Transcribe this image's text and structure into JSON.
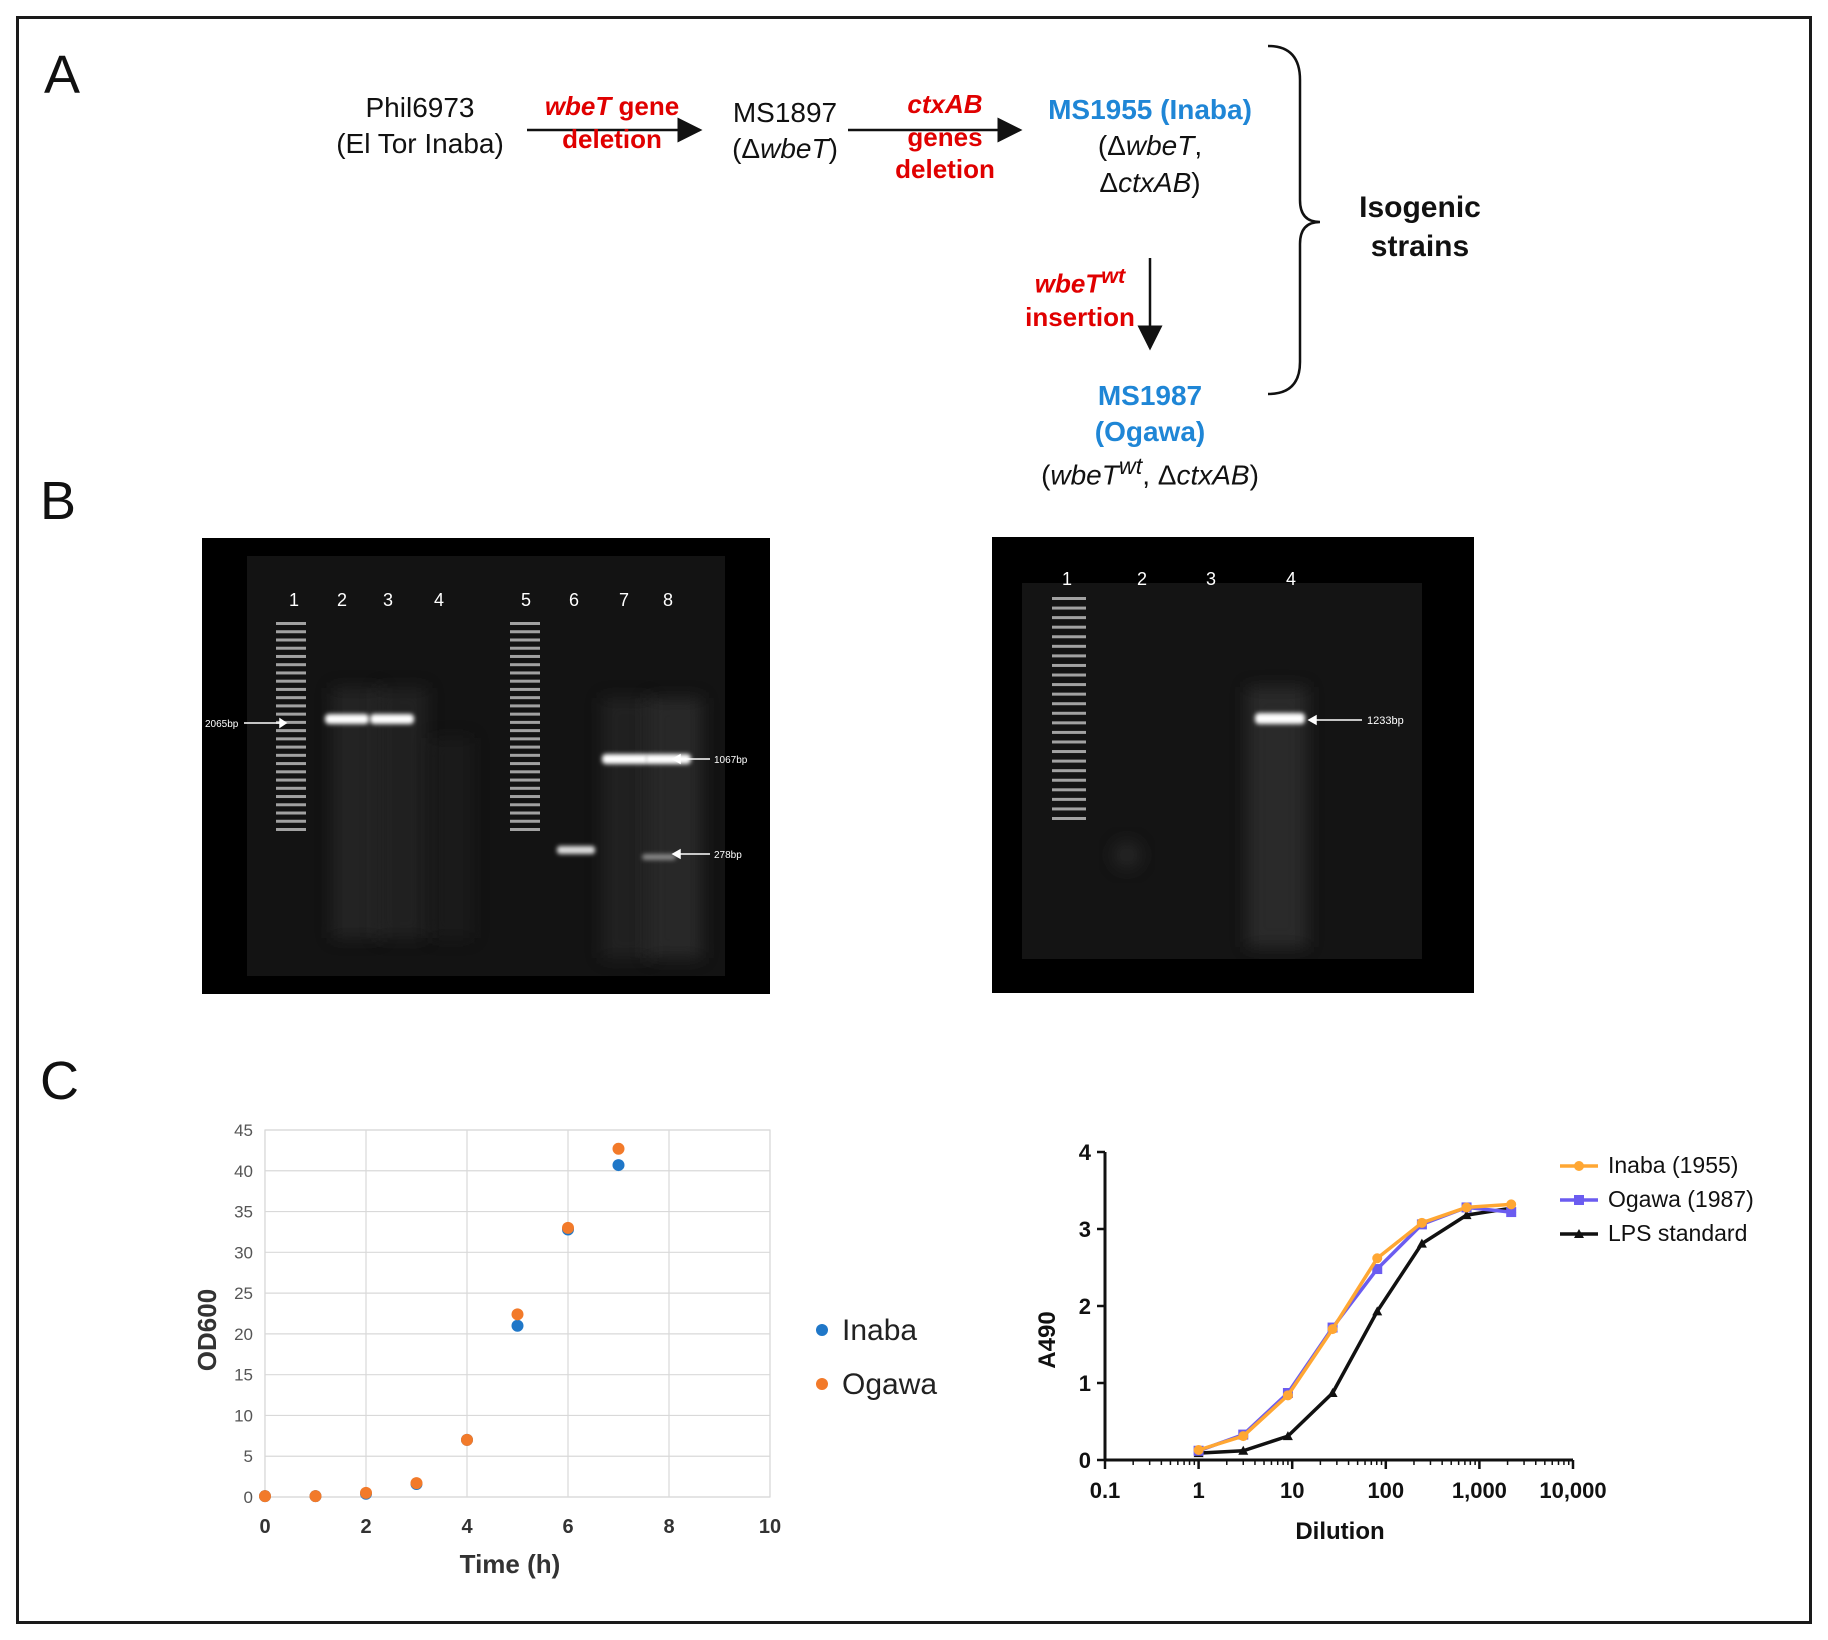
{
  "panels": {
    "a": "A",
    "b": "B",
    "c": "C"
  },
  "scheme": {
    "phil": {
      "line1": "Phil6973",
      "line2": "(El Tor Inaba)"
    },
    "step1": {
      "gene": "wbeT",
      "line1_rest": " gene",
      "line2": "deletion"
    },
    "ms1897": {
      "name": "MS1897",
      "delta": "(Δ",
      "gene": "wbeT",
      "close": ")"
    },
    "step2": {
      "gene": "ctxAB",
      "line2": "genes",
      "line3": "deletion"
    },
    "ms1955": {
      "name": "MS1955 (Inaba)",
      "l2_open": "(Δ",
      "l2_gene": "wbeT",
      "l2_comma": ",",
      "l3_open": "Δ",
      "l3_gene": "ctxAB",
      "l3_close": ")"
    },
    "step3": {
      "gene": "wbeT",
      "sup": "wt",
      "line2": "insertion"
    },
    "ms1987": {
      "line1": "MS1987",
      "line2": "(Ogawa)",
      "l3_open": "(",
      "l3_gene": "wbeT",
      "l3_sup": "wt",
      "l3_mid": ", Δ",
      "l3_gene2": "ctxAB",
      "l3_close": ")"
    },
    "isogenic": {
      "line1": "Isogenic",
      "line2": "strains"
    }
  },
  "gel_left": {
    "lanes": [
      "1",
      "2",
      "3",
      "4",
      "5",
      "6",
      "7",
      "8"
    ],
    "markers": {
      "m2065": "2065bp",
      "m1067": "1067bp",
      "m278": "278bp"
    }
  },
  "gel_right": {
    "lanes": [
      "1",
      "2",
      "3",
      "4"
    ],
    "markers": {
      "m1233": "1233bp"
    }
  },
  "colors": {
    "inaba": "#1f77c8",
    "ogawa": "#f27a2a",
    "inaba_line": "#ffa733",
    "ogawa_line": "#6b5cf0",
    "lps": "#111111"
  },
  "chart_data": [
    {
      "type": "scatter",
      "xlabel": "Time (h)",
      "ylabel": "OD600",
      "xlim": [
        0,
        10
      ],
      "ylim": [
        0,
        45
      ],
      "xticks": [
        0,
        2,
        4,
        6,
        8,
        10
      ],
      "yticks": [
        0,
        5,
        10,
        15,
        20,
        25,
        30,
        35,
        40,
        45
      ],
      "grid": true,
      "legend": "right",
      "series": [
        {
          "name": "Inaba",
          "x": [
            0,
            1,
            2,
            3,
            4,
            5,
            6,
            7
          ],
          "y": [
            0.1,
            0.1,
            0.4,
            1.6,
            7.0,
            21.0,
            32.8,
            40.7
          ]
        },
        {
          "name": "Ogawa",
          "x": [
            0,
            1,
            2,
            3,
            4,
            5,
            6,
            7
          ],
          "y": [
            0.1,
            0.1,
            0.5,
            1.7,
            7.0,
            22.4,
            33.0,
            42.7
          ]
        }
      ]
    },
    {
      "type": "line",
      "xlabel": "Dilution",
      "ylabel": "A490",
      "xscale": "log",
      "xlim": [
        0.1,
        10000
      ],
      "ylim": [
        0,
        4
      ],
      "xtick_labels": [
        "0.1",
        "1",
        "10",
        "100",
        "1,000",
        "10,000"
      ],
      "xticks": [
        0.1,
        1,
        10,
        100,
        1000,
        10000
      ],
      "yticks": [
        0,
        1,
        2,
        3,
        4
      ],
      "grid": false,
      "legend": "top-right",
      "series": [
        {
          "name": "Inaba (1955)",
          "x": [
            1,
            3,
            9,
            27,
            81,
            243,
            729,
            2187
          ],
          "y": [
            0.13,
            0.31,
            0.84,
            1.7,
            2.62,
            3.08,
            3.28,
            3.32
          ]
        },
        {
          "name": "Ogawa (1987)",
          "x": [
            1,
            3,
            9,
            27,
            81,
            243,
            729,
            2187
          ],
          "y": [
            0.12,
            0.33,
            0.87,
            1.72,
            2.48,
            3.06,
            3.28,
            3.22
          ]
        },
        {
          "name": "LPS standard",
          "x": [
            1,
            3,
            9,
            27,
            81,
            243,
            729,
            2187
          ],
          "y": [
            0.09,
            0.12,
            0.31,
            0.87,
            1.93,
            2.81,
            3.18,
            3.27
          ]
        }
      ]
    }
  ]
}
